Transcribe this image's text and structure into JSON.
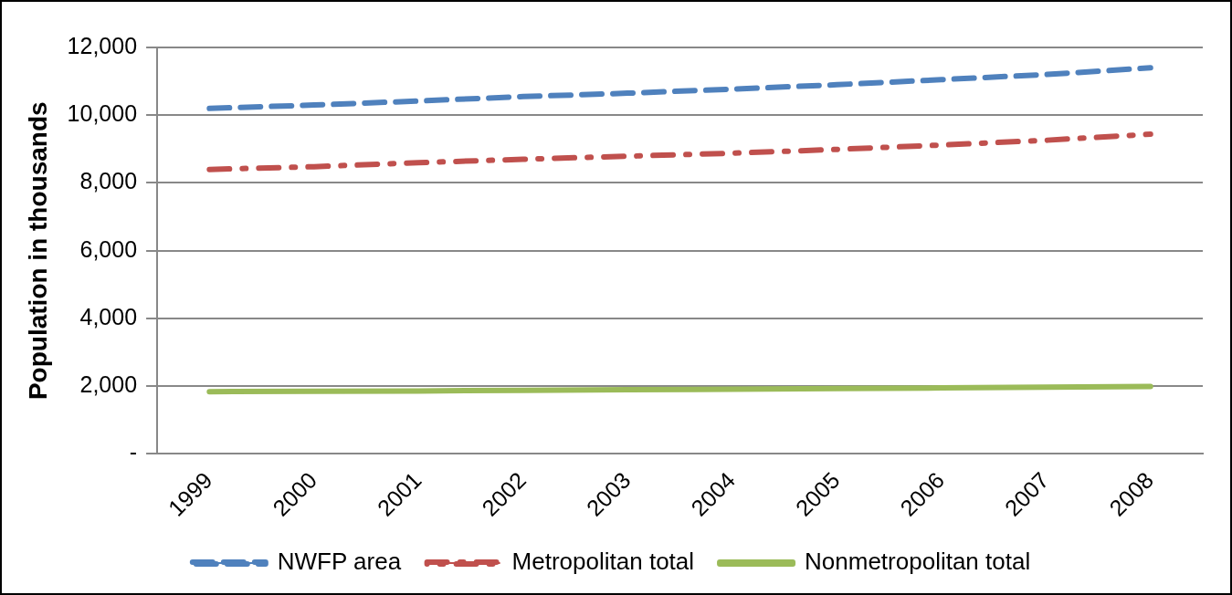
{
  "chart_data": {
    "type": "line",
    "ylabel": "Population in thousands",
    "categories": [
      "1999",
      "2000",
      "2001",
      "2002",
      "2003",
      "2004",
      "2005",
      "2006",
      "2007",
      "2008"
    ],
    "series": [
      {
        "name": "NWFP area",
        "color": "#4f81bd",
        "line_style": "dashed",
        "values": [
          10200,
          10300,
          10420,
          10550,
          10650,
          10770,
          10900,
          11050,
          11200,
          11400
        ]
      },
      {
        "name": "Metropolitan total",
        "color": "#c0504d",
        "line_style": "dotted",
        "values": [
          8400,
          8480,
          8600,
          8700,
          8790,
          8880,
          8990,
          9120,
          9260,
          9440
        ]
      },
      {
        "name": "Nonmetropolitan total",
        "color": "#9bbb59",
        "line_style": "solid",
        "values": [
          1840,
          1850,
          1860,
          1880,
          1900,
          1910,
          1930,
          1950,
          1970,
          1990
        ]
      }
    ],
    "ylim": [
      0,
      12000
    ],
    "yticks": [
      {
        "value": 0,
        "label": "-"
      },
      {
        "value": 2000,
        "label": "2,000"
      },
      {
        "value": 4000,
        "label": "4,000"
      },
      {
        "value": 6000,
        "label": "6,000"
      },
      {
        "value": 8000,
        "label": "8,000"
      },
      {
        "value": 10000,
        "label": "10,000"
      },
      {
        "value": 12000,
        "label": "12,000"
      }
    ],
    "grid": "y",
    "legend": "bottom",
    "marker": "none"
  }
}
